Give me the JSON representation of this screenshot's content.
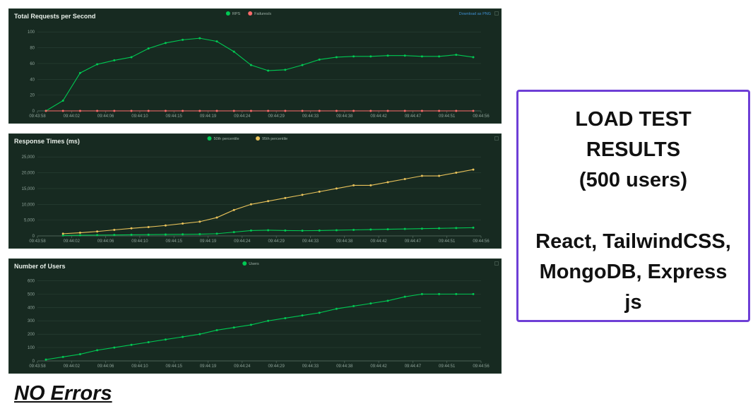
{
  "x_ticks": [
    "09:43:58",
    "09:44:02",
    "09:44:06",
    "09:44:10",
    "09:44:15",
    "09:44:19",
    "09:44:24",
    "09:44:29",
    "09:44:33",
    "09:44:38",
    "09:44:42",
    "09:44:47",
    "09:44:51",
    "09:44:56"
  ],
  "download_label": "Download as PNG",
  "info": {
    "title": "LOAD TEST\nRESULTS\n(500 users)",
    "stack": "React, TailwindCSS,\nMongoDB, Express\njs"
  },
  "footer": {
    "no_errors": "NO Errors"
  },
  "colors": {
    "panel_bg": "#172a21",
    "green": "#00c853",
    "red": "#ff6b6b",
    "yellow": "#e8c25a",
    "border": "#6e3fd6"
  },
  "chart_data": [
    {
      "type": "line",
      "title": "Total Requests per Second",
      "ylim": [
        0,
        110
      ],
      "yticks": [
        0,
        20,
        40,
        60,
        80,
        100
      ],
      "ytick_labels": [
        "0",
        "20",
        "40",
        "60",
        "80",
        "100"
      ],
      "series": [
        {
          "name": "RPS",
          "color": "#00c853",
          "values": [
            0,
            13,
            48,
            59,
            64,
            68,
            79,
            86,
            90,
            92,
            88,
            75,
            58,
            51,
            52,
            58,
            65,
            68,
            69,
            69,
            70,
            70,
            69,
            69,
            71,
            68
          ]
        },
        {
          "name": "Failures/s",
          "color": "#ff6b6b",
          "values": [
            0,
            0,
            0,
            0,
            0,
            0,
            0,
            0,
            0,
            0,
            0,
            0,
            0,
            0,
            0,
            0,
            0,
            0,
            0,
            0,
            0,
            0,
            0,
            0,
            0,
            0
          ]
        }
      ]
    },
    {
      "type": "line",
      "title": "Response Times (ms)",
      "ylim": [
        0,
        27500
      ],
      "yticks": [
        0,
        5000,
        10000,
        15000,
        20000,
        25000
      ],
      "ytick_labels": [
        "0",
        "5,000",
        "10,000",
        "15,000",
        "20,000",
        "25,000"
      ],
      "series": [
        {
          "name": "50th percentile",
          "color": "#00c853",
          "values": [
            null,
            150,
            200,
            250,
            300,
            350,
            400,
            450,
            500,
            550,
            700,
            1200,
            1700,
            1800,
            1700,
            1650,
            1700,
            1800,
            1900,
            2000,
            2100,
            2200,
            2300,
            2400,
            2500,
            2600
          ]
        },
        {
          "name": "95th percentile",
          "color": "#e8c25a",
          "values": [
            null,
            700,
            1000,
            1400,
            1900,
            2400,
            2800,
            3300,
            3900,
            4500,
            5800,
            8200,
            10000,
            11000,
            12000,
            13000,
            14000,
            15000,
            16000,
            16000,
            17000,
            18000,
            19000,
            19000,
            20000,
            21000
          ]
        }
      ]
    },
    {
      "type": "line",
      "title": "Number of Users",
      "ylim": [
        0,
        650
      ],
      "yticks": [
        0,
        100,
        200,
        300,
        400,
        500,
        600
      ],
      "ytick_labels": [
        "0",
        "100",
        "200",
        "300",
        "400",
        "500",
        "600"
      ],
      "series": [
        {
          "name": "Users",
          "color": "#00c853",
          "values": [
            10,
            30,
            50,
            80,
            100,
            120,
            140,
            160,
            180,
            200,
            230,
            250,
            270,
            300,
            320,
            340,
            360,
            390,
            410,
            430,
            450,
            480,
            500,
            500,
            500,
            500
          ]
        }
      ]
    }
  ]
}
